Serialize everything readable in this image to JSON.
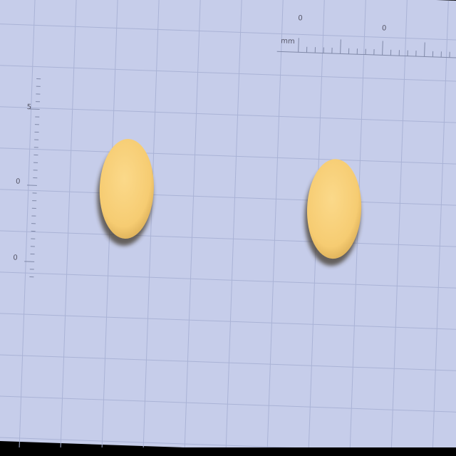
{
  "rulers": {
    "top": {
      "unit": "mm",
      "labels": [
        "0",
        "0"
      ]
    },
    "left": {
      "labels": [
        "5",
        "0",
        "0"
      ]
    }
  }
}
